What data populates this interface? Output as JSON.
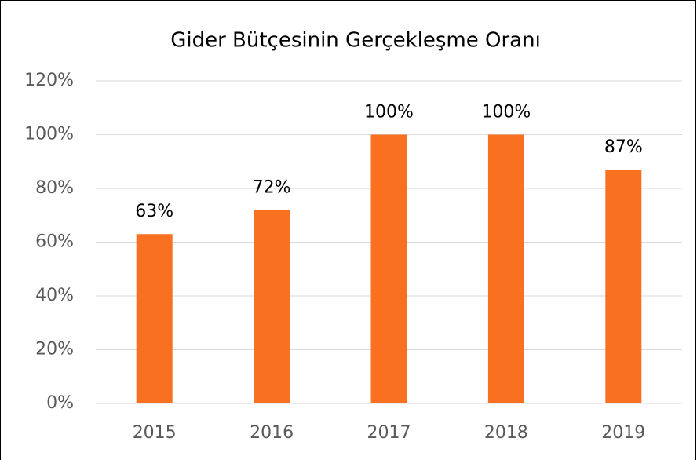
{
  "chart_data": {
    "type": "bar",
    "title": "Gider Bütçesinin Gerçekleşme Oranı",
    "categories": [
      "2015",
      "2016",
      "2017",
      "2018",
      "2019"
    ],
    "values": [
      63,
      72,
      100,
      100,
      87
    ],
    "value_labels": [
      "63%",
      "72%",
      "100%",
      "100%",
      "87%"
    ],
    "color": "#fa7021",
    "ylim": [
      0,
      120
    ],
    "yticks": [
      {
        "value": 0,
        "label": "0%"
      },
      {
        "value": 20,
        "label": "20%"
      },
      {
        "value": 40,
        "label": "40%"
      },
      {
        "value": 60,
        "label": "60%"
      },
      {
        "value": 80,
        "label": "80%"
      },
      {
        "value": 100,
        "label": "100%"
      },
      {
        "value": 120,
        "label": "120%"
      }
    ],
    "grid": true
  }
}
